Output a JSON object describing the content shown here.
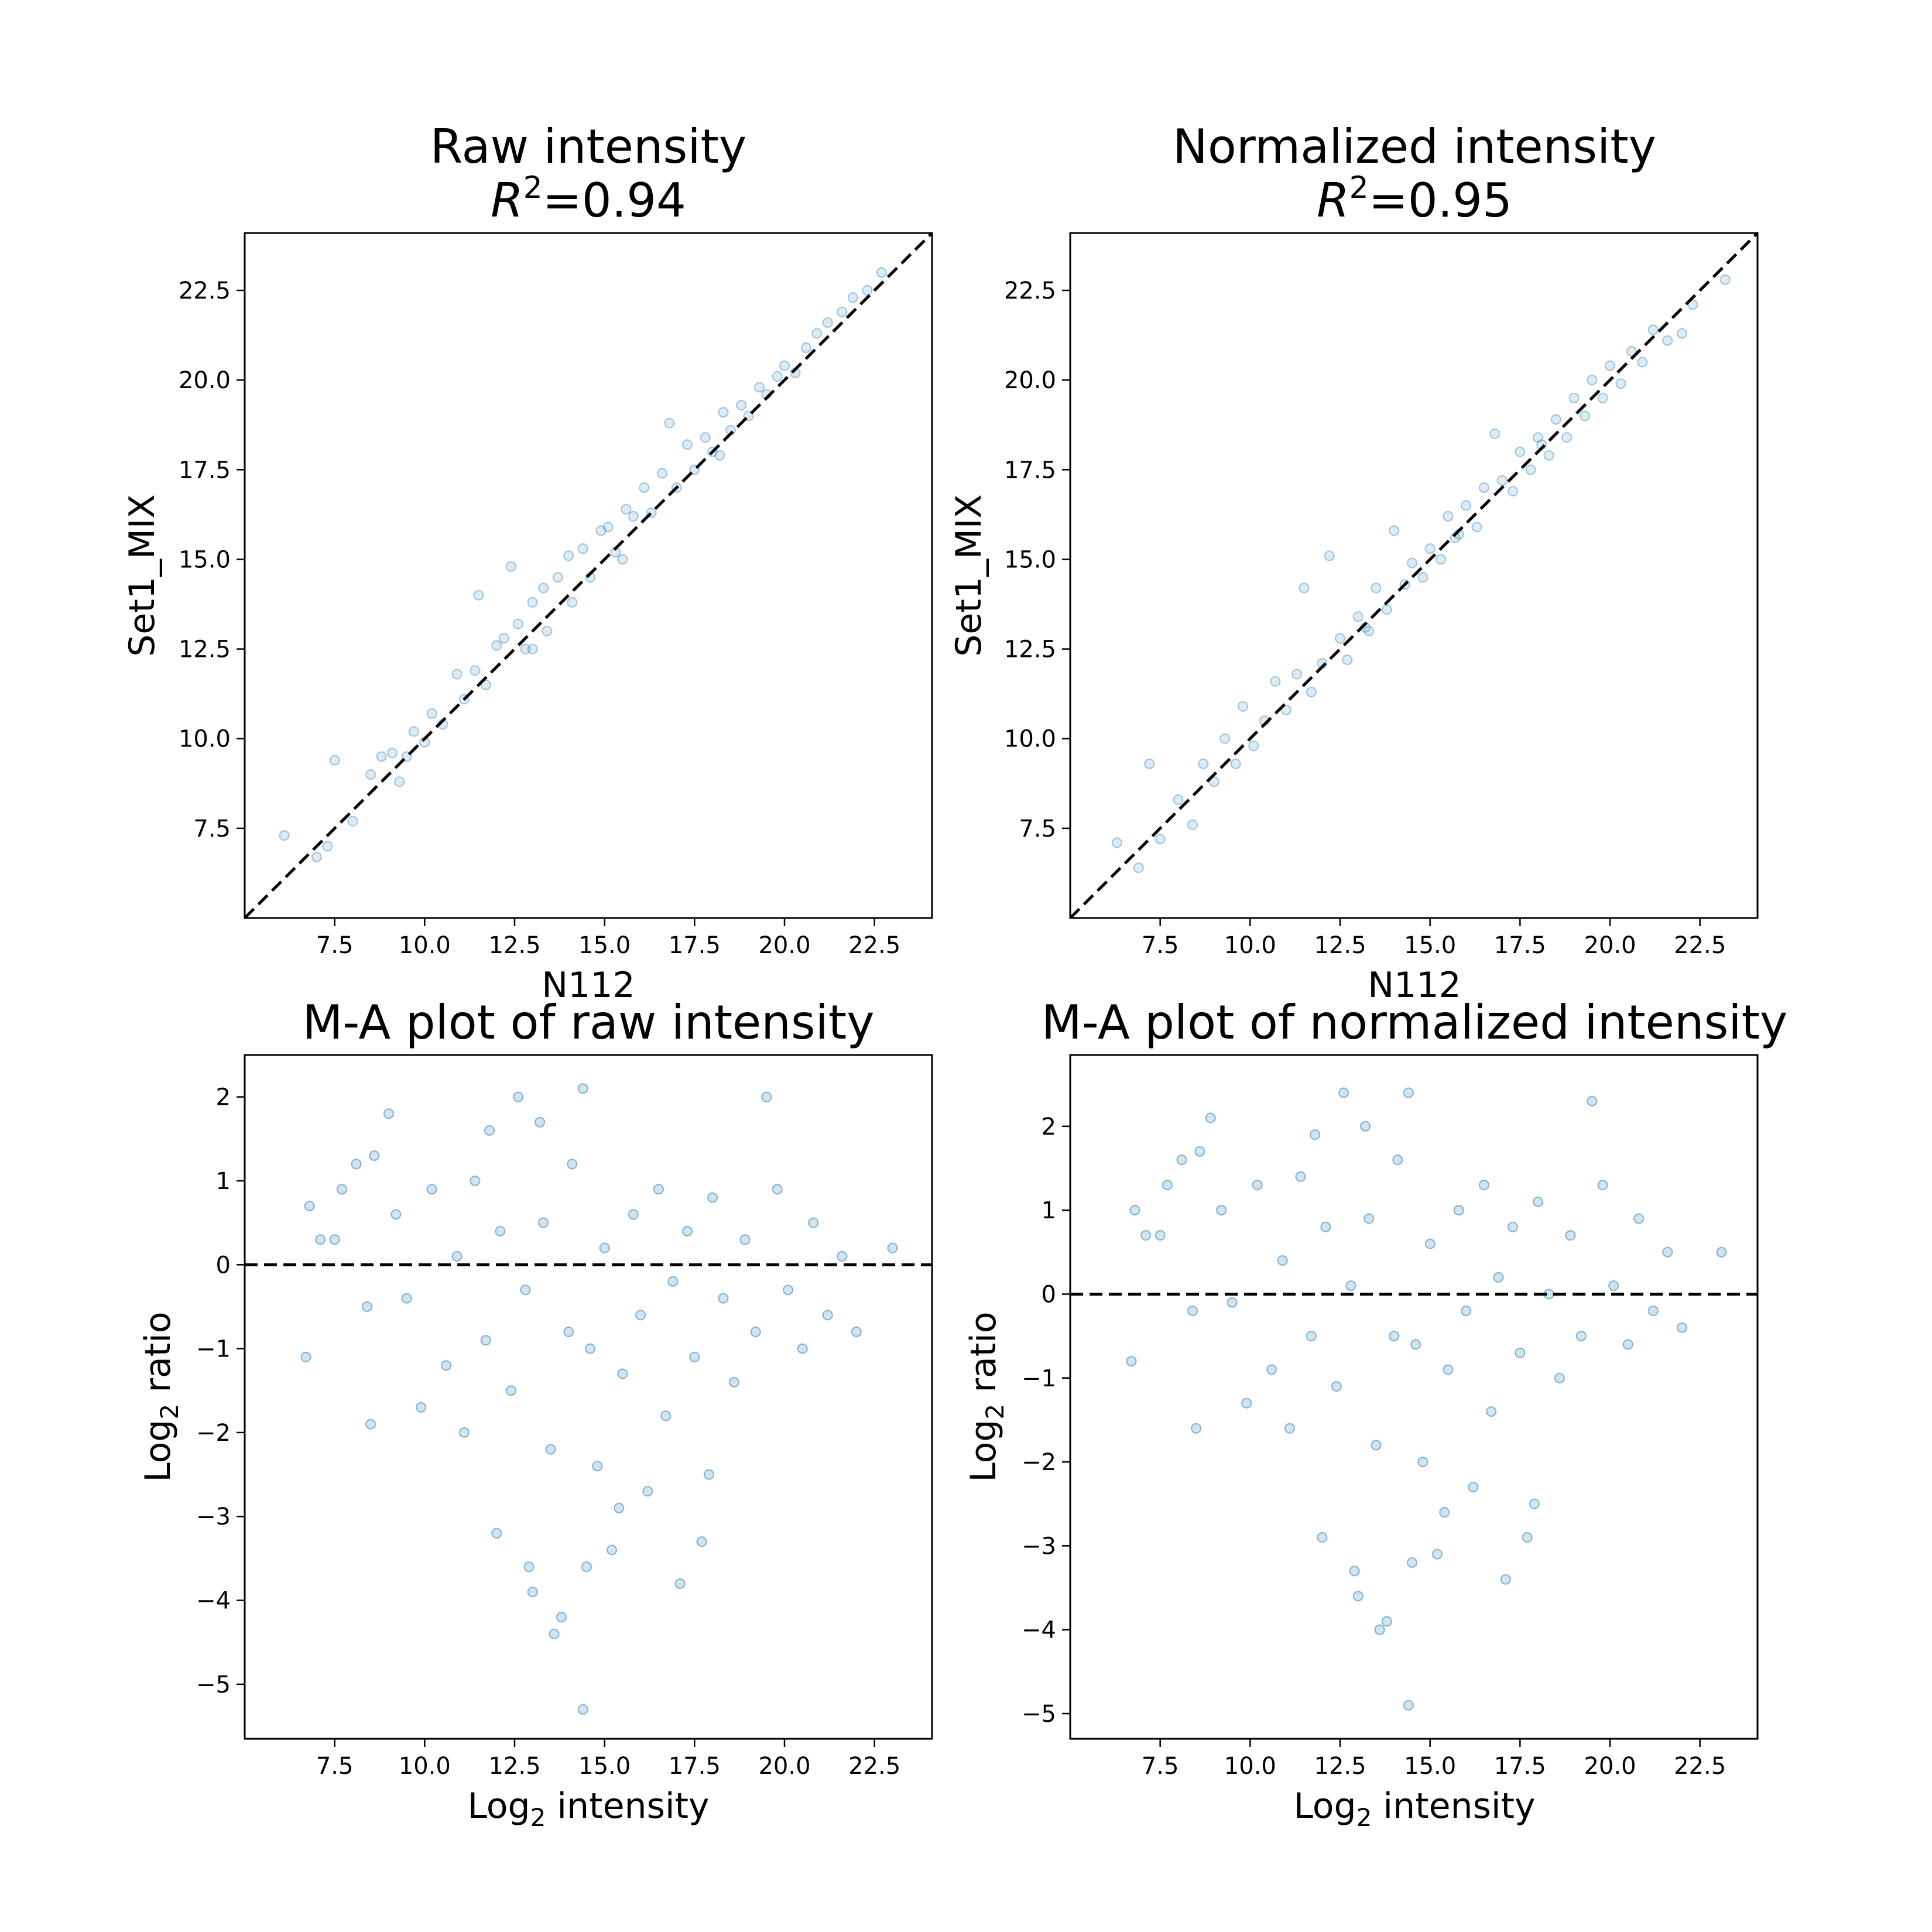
{
  "figure": {
    "marker_color": "#1f77b4",
    "reference_line_color": "#000000"
  },
  "chart_data": [
    {
      "type": "scatter",
      "title": "Raw intensity",
      "subtitle_prefix": "R",
      "subtitle_sup": "2",
      "subtitle_value": "=0.94",
      "xlabel": "N112",
      "ylabel": "Set1_MIX",
      "xlim": [
        5.0,
        24.1
      ],
      "ylim": [
        5.0,
        24.1
      ],
      "xticks": [
        "7.5",
        "10.0",
        "12.5",
        "15.0",
        "17.5",
        "20.0",
        "22.5"
      ],
      "yticks": [
        "7.5",
        "10.0",
        "12.5",
        "15.0",
        "17.5",
        "20.0",
        "22.5"
      ],
      "reference_line": "y = x",
      "point_alpha": 0.15,
      "points": [
        [
          6.1,
          7.3
        ],
        [
          7.0,
          6.7
        ],
        [
          7.3,
          7.0
        ],
        [
          7.5,
          9.4
        ],
        [
          8.0,
          7.7
        ],
        [
          8.5,
          9.0
        ],
        [
          8.8,
          9.5
        ],
        [
          9.1,
          9.6
        ],
        [
          9.3,
          8.8
        ],
        [
          9.5,
          9.5
        ],
        [
          9.7,
          10.2
        ],
        [
          10.0,
          9.9
        ],
        [
          10.2,
          10.7
        ],
        [
          10.5,
          10.4
        ],
        [
          10.9,
          11.8
        ],
        [
          11.1,
          11.1
        ],
        [
          11.4,
          11.9
        ],
        [
          11.5,
          14.0
        ],
        [
          11.7,
          11.5
        ],
        [
          12.0,
          12.6
        ],
        [
          12.2,
          12.8
        ],
        [
          12.4,
          14.8
        ],
        [
          12.6,
          13.2
        ],
        [
          12.8,
          12.5
        ],
        [
          13.0,
          13.8
        ],
        [
          13.3,
          14.2
        ],
        [
          13.4,
          13.0
        ],
        [
          13.7,
          14.5
        ],
        [
          14.0,
          15.1
        ],
        [
          14.1,
          13.8
        ],
        [
          14.4,
          15.3
        ],
        [
          14.6,
          14.5
        ],
        [
          14.9,
          15.8
        ],
        [
          15.1,
          15.9
        ],
        [
          15.3,
          15.2
        ],
        [
          15.6,
          16.4
        ],
        [
          15.8,
          16.2
        ],
        [
          16.1,
          17.0
        ],
        [
          16.3,
          16.3
        ],
        [
          16.6,
          17.4
        ],
        [
          16.8,
          18.8
        ],
        [
          17.0,
          17.0
        ],
        [
          17.3,
          18.2
        ],
        [
          17.5,
          17.5
        ],
        [
          17.8,
          18.4
        ],
        [
          18.0,
          18.0
        ],
        [
          18.3,
          19.1
        ],
        [
          18.5,
          18.6
        ],
        [
          18.8,
          19.3
        ],
        [
          19.0,
          19.0
        ],
        [
          19.3,
          19.8
        ],
        [
          19.5,
          19.6
        ],
        [
          19.8,
          20.1
        ],
        [
          20.0,
          20.4
        ],
        [
          20.3,
          20.2
        ],
        [
          20.6,
          20.9
        ],
        [
          20.9,
          21.3
        ],
        [
          21.2,
          21.6
        ],
        [
          21.6,
          21.9
        ],
        [
          21.9,
          22.3
        ],
        [
          22.3,
          22.5
        ],
        [
          22.7,
          23.0
        ],
        [
          13.0,
          12.5
        ],
        [
          15.5,
          15.0
        ],
        [
          18.2,
          17.9
        ]
      ]
    },
    {
      "type": "scatter",
      "title": "Normalized intensity",
      "subtitle_prefix": "R",
      "subtitle_sup": "2",
      "subtitle_value": "=0.95",
      "xlabel": "N112",
      "ylabel": "Set1_MIX",
      "xlim": [
        5.0,
        24.1
      ],
      "ylim": [
        5.0,
        24.1
      ],
      "xticks": [
        "7.5",
        "10.0",
        "12.5",
        "15.0",
        "17.5",
        "20.0",
        "22.5"
      ],
      "yticks": [
        "7.5",
        "10.0",
        "12.5",
        "15.0",
        "17.5",
        "20.0",
        "22.5"
      ],
      "reference_line": "y = x",
      "point_alpha": 0.15,
      "points": [
        [
          6.3,
          7.1
        ],
        [
          6.9,
          6.4
        ],
        [
          7.2,
          9.3
        ],
        [
          7.5,
          7.2
        ],
        [
          8.0,
          8.3
        ],
        [
          8.4,
          7.6
        ],
        [
          8.7,
          9.3
        ],
        [
          9.0,
          8.8
        ],
        [
          9.3,
          10.0
        ],
        [
          9.6,
          9.3
        ],
        [
          9.8,
          10.9
        ],
        [
          10.1,
          9.8
        ],
        [
          10.4,
          10.5
        ],
        [
          10.7,
          11.6
        ],
        [
          11.0,
          10.8
        ],
        [
          11.3,
          11.8
        ],
        [
          11.5,
          14.2
        ],
        [
          11.7,
          11.3
        ],
        [
          12.0,
          12.1
        ],
        [
          12.2,
          15.1
        ],
        [
          12.5,
          12.8
        ],
        [
          12.7,
          12.2
        ],
        [
          13.0,
          13.4
        ],
        [
          13.3,
          13.0
        ],
        [
          13.5,
          14.2
        ],
        [
          13.8,
          13.6
        ],
        [
          14.0,
          15.8
        ],
        [
          14.3,
          14.3
        ],
        [
          14.5,
          14.9
        ],
        [
          14.8,
          14.5
        ],
        [
          15.0,
          15.3
        ],
        [
          15.3,
          15.0
        ],
        [
          15.5,
          16.2
        ],
        [
          15.8,
          15.7
        ],
        [
          16.0,
          16.5
        ],
        [
          16.3,
          15.9
        ],
        [
          16.5,
          17.0
        ],
        [
          16.8,
          18.5
        ],
        [
          17.0,
          17.2
        ],
        [
          17.3,
          16.9
        ],
        [
          17.5,
          18.0
        ],
        [
          17.8,
          17.5
        ],
        [
          18.0,
          18.4
        ],
        [
          18.3,
          17.9
        ],
        [
          18.5,
          18.9
        ],
        [
          18.8,
          18.4
        ],
        [
          19.0,
          19.5
        ],
        [
          19.3,
          19.0
        ],
        [
          19.5,
          20.0
        ],
        [
          19.8,
          19.5
        ],
        [
          20.0,
          20.4
        ],
        [
          20.3,
          19.9
        ],
        [
          20.6,
          20.8
        ],
        [
          20.9,
          20.5
        ],
        [
          21.2,
          21.4
        ],
        [
          21.6,
          21.1
        ],
        [
          22.0,
          21.3
        ],
        [
          22.3,
          22.1
        ],
        [
          23.2,
          22.8
        ],
        [
          13.2,
          13.1
        ],
        [
          15.7,
          15.6
        ],
        [
          18.1,
          18.2
        ]
      ]
    },
    {
      "type": "scatter",
      "title": "M-A plot of raw intensity",
      "xlabel_prefix": "Log",
      "xlabel_sub": "2",
      "xlabel_suffix": " intensity",
      "ylabel_prefix": "Log",
      "ylabel_sub": "2",
      "ylabel_suffix": " ratio",
      "xlim": [
        5.0,
        24.1
      ],
      "ylim": [
        -5.65,
        2.5
      ],
      "xticks": [
        "7.5",
        "10.0",
        "12.5",
        "15.0",
        "17.5",
        "20.0",
        "22.5"
      ],
      "yticks": [
        "2",
        "1",
        "0",
        "−1",
        "−2",
        "−3",
        "−4",
        "−5"
      ],
      "reference_line": "y = 0",
      "point_alpha": 0.2,
      "points": [
        [
          6.7,
          -1.1
        ],
        [
          6.8,
          0.7
        ],
        [
          7.1,
          0.3
        ],
        [
          7.5,
          0.3
        ],
        [
          7.7,
          0.9
        ],
        [
          8.1,
          1.2
        ],
        [
          8.4,
          -0.5
        ],
        [
          8.5,
          -1.9
        ],
        [
          8.6,
          1.3
        ],
        [
          9.0,
          1.8
        ],
        [
          9.2,
          0.6
        ],
        [
          9.5,
          -0.4
        ],
        [
          9.9,
          -1.7
        ],
        [
          10.2,
          0.9
        ],
        [
          10.6,
          -1.2
        ],
        [
          10.9,
          0.1
        ],
        [
          11.1,
          -2.0
        ],
        [
          11.4,
          1.0
        ],
        [
          11.7,
          -0.9
        ],
        [
          11.8,
          1.6
        ],
        [
          12.0,
          -3.2
        ],
        [
          12.1,
          0.4
        ],
        [
          12.4,
          -1.5
        ],
        [
          12.6,
          2.0
        ],
        [
          12.8,
          -0.3
        ],
        [
          12.9,
          -3.6
        ],
        [
          13.0,
          -3.9
        ],
        [
          13.2,
          1.7
        ],
        [
          13.3,
          0.5
        ],
        [
          13.5,
          -2.2
        ],
        [
          13.6,
          -4.4
        ],
        [
          13.8,
          -4.2
        ],
        [
          14.0,
          -0.8
        ],
        [
          14.1,
          1.2
        ],
        [
          14.4,
          -5.3
        ],
        [
          14.4,
          2.1
        ],
        [
          14.5,
          -3.6
        ],
        [
          14.6,
          -1.0
        ],
        [
          14.8,
          -2.4
        ],
        [
          15.0,
          0.2
        ],
        [
          15.2,
          -3.4
        ],
        [
          15.4,
          -2.9
        ],
        [
          15.5,
          -1.3
        ],
        [
          15.8,
          0.6
        ],
        [
          16.0,
          -0.6
        ],
        [
          16.2,
          -2.7
        ],
        [
          16.5,
          0.9
        ],
        [
          16.7,
          -1.8
        ],
        [
          16.9,
          -0.2
        ],
        [
          17.1,
          -3.8
        ],
        [
          17.3,
          0.4
        ],
        [
          17.5,
          -1.1
        ],
        [
          17.7,
          -3.3
        ],
        [
          17.9,
          -2.5
        ],
        [
          18.0,
          0.8
        ],
        [
          18.3,
          -0.4
        ],
        [
          18.6,
          -1.4
        ],
        [
          18.9,
          0.3
        ],
        [
          19.2,
          -0.8
        ],
        [
          19.5,
          2.0
        ],
        [
          19.8,
          0.9
        ],
        [
          20.1,
          -0.3
        ],
        [
          20.5,
          -1.0
        ],
        [
          20.8,
          0.5
        ],
        [
          21.2,
          -0.6
        ],
        [
          21.6,
          0.1
        ],
        [
          22.0,
          -0.8
        ],
        [
          23.0,
          0.2
        ]
      ]
    },
    {
      "type": "scatter",
      "title": "M-A plot of normalized intensity",
      "xlabel_prefix": "Log",
      "xlabel_sub": "2",
      "xlabel_suffix": " intensity",
      "ylabel_prefix": "Log",
      "ylabel_sub": "2",
      "ylabel_suffix": " ratio",
      "xlim": [
        5.0,
        24.1
      ],
      "ylim": [
        -5.3,
        2.85
      ],
      "xticks": [
        "7.5",
        "10.0",
        "12.5",
        "15.0",
        "17.5",
        "20.0",
        "22.5"
      ],
      "yticks": [
        "2",
        "1",
        "0",
        "−1",
        "−2",
        "−3",
        "−4",
        "−5"
      ],
      "reference_line": "y = 0",
      "point_alpha": 0.2,
      "points": [
        [
          6.7,
          -0.8
        ],
        [
          6.8,
          1.0
        ],
        [
          7.1,
          0.7
        ],
        [
          7.5,
          0.7
        ],
        [
          7.7,
          1.3
        ],
        [
          8.1,
          1.6
        ],
        [
          8.4,
          -0.2
        ],
        [
          8.5,
          -1.6
        ],
        [
          8.6,
          1.7
        ],
        [
          8.9,
          2.1
        ],
        [
          9.2,
          1.0
        ],
        [
          9.5,
          -0.1
        ],
        [
          9.9,
          -1.3
        ],
        [
          10.2,
          1.3
        ],
        [
          10.6,
          -0.9
        ],
        [
          10.9,
          0.4
        ],
        [
          11.1,
          -1.6
        ],
        [
          11.4,
          1.4
        ],
        [
          11.7,
          -0.5
        ],
        [
          11.8,
          1.9
        ],
        [
          12.0,
          -2.9
        ],
        [
          12.1,
          0.8
        ],
        [
          12.4,
          -1.1
        ],
        [
          12.6,
          2.4
        ],
        [
          12.8,
          0.1
        ],
        [
          12.9,
          -3.3
        ],
        [
          13.0,
          -3.6
        ],
        [
          13.2,
          2.0
        ],
        [
          13.3,
          0.9
        ],
        [
          13.5,
          -1.8
        ],
        [
          13.6,
          -4.0
        ],
        [
          13.8,
          -3.9
        ],
        [
          14.0,
          -0.5
        ],
        [
          14.1,
          1.6
        ],
        [
          14.4,
          -4.9
        ],
        [
          14.4,
          2.4
        ],
        [
          14.5,
          -3.2
        ],
        [
          14.6,
          -0.6
        ],
        [
          14.8,
          -2.0
        ],
        [
          15.0,
          0.6
        ],
        [
          15.2,
          -3.1
        ],
        [
          15.4,
          -2.6
        ],
        [
          15.5,
          -0.9
        ],
        [
          15.8,
          1.0
        ],
        [
          16.0,
          -0.2
        ],
        [
          16.2,
          -2.3
        ],
        [
          16.5,
          1.3
        ],
        [
          16.7,
          -1.4
        ],
        [
          16.9,
          0.2
        ],
        [
          17.1,
          -3.4
        ],
        [
          17.3,
          0.8
        ],
        [
          17.5,
          -0.7
        ],
        [
          17.7,
          -2.9
        ],
        [
          17.9,
          -2.5
        ],
        [
          18.0,
          1.1
        ],
        [
          18.3,
          0.0
        ],
        [
          18.6,
          -1.0
        ],
        [
          18.9,
          0.7
        ],
        [
          19.2,
          -0.5
        ],
        [
          19.5,
          2.3
        ],
        [
          19.8,
          1.3
        ],
        [
          20.1,
          0.1
        ],
        [
          20.5,
          -0.6
        ],
        [
          20.8,
          0.9
        ],
        [
          21.2,
          -0.2
        ],
        [
          21.6,
          0.5
        ],
        [
          22.0,
          -0.4
        ],
        [
          23.1,
          0.5
        ]
      ]
    }
  ]
}
